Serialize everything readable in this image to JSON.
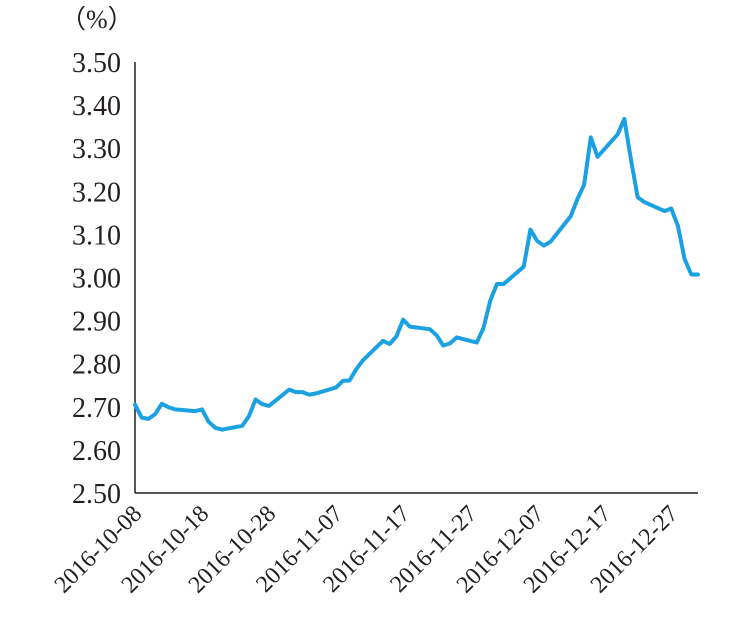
{
  "chart_data": {
    "type": "line",
    "title": "",
    "xlabel": "",
    "ylabel": "（%）",
    "ylim": [
      2.5,
      3.5
    ],
    "y_ticks": [
      "2.50",
      "2.60",
      "2.70",
      "2.80",
      "2.90",
      "3.00",
      "3.10",
      "3.20",
      "3.30",
      "3.40",
      "3.50"
    ],
    "x_ticks": [
      "2016-10-08",
      "2016-10-18",
      "2016-10-28",
      "2016-11-07",
      "2016-11-17",
      "2016-11-27",
      "2016-12-07",
      "2016-12-17",
      "2016-12-27"
    ],
    "x_range": [
      "2016-10-08",
      "2016-12-31"
    ],
    "grid": false,
    "line_color": "#1ba1e2",
    "series": [
      {
        "name": "",
        "points": [
          [
            "2016-10-08",
            2.705
          ],
          [
            "2016-10-09",
            2.675
          ],
          [
            "2016-10-10",
            2.672
          ],
          [
            "2016-10-11",
            2.683
          ],
          [
            "2016-10-12",
            2.707
          ],
          [
            "2016-10-13",
            2.699
          ],
          [
            "2016-10-14",
            2.694
          ],
          [
            "2016-10-17",
            2.69
          ],
          [
            "2016-10-18",
            2.694
          ],
          [
            "2016-10-19",
            2.665
          ],
          [
            "2016-10-20",
            2.651
          ],
          [
            "2016-10-21",
            2.647
          ],
          [
            "2016-10-24",
            2.656
          ],
          [
            "2016-10-25",
            2.678
          ],
          [
            "2016-10-26",
            2.717
          ],
          [
            "2016-10-27",
            2.706
          ],
          [
            "2016-10-28",
            2.702
          ],
          [
            "2016-10-31",
            2.74
          ],
          [
            "2016-11-01",
            2.734
          ],
          [
            "2016-11-02",
            2.734
          ],
          [
            "2016-11-03",
            2.728
          ],
          [
            "2016-11-04",
            2.731
          ],
          [
            "2016-11-07",
            2.745
          ],
          [
            "2016-11-08",
            2.76
          ],
          [
            "2016-11-09",
            2.761
          ],
          [
            "2016-11-10",
            2.787
          ],
          [
            "2016-11-11",
            2.808
          ],
          [
            "2016-11-14",
            2.853
          ],
          [
            "2016-11-15",
            2.846
          ],
          [
            "2016-11-16",
            2.863
          ],
          [
            "2016-11-17",
            2.902
          ],
          [
            "2016-11-18",
            2.886
          ],
          [
            "2016-11-21",
            2.88
          ],
          [
            "2016-11-22",
            2.866
          ],
          [
            "2016-11-23",
            2.842
          ],
          [
            "2016-11-24",
            2.847
          ],
          [
            "2016-11-25",
            2.861
          ],
          [
            "2016-11-28",
            2.849
          ],
          [
            "2016-11-29",
            2.883
          ],
          [
            "2016-11-30",
            2.946
          ],
          [
            "2016-12-01",
            2.985
          ],
          [
            "2016-12-02",
            2.985
          ],
          [
            "2016-12-05",
            3.025
          ],
          [
            "2016-12-06",
            3.111
          ],
          [
            "2016-12-07",
            3.085
          ],
          [
            "2016-12-08",
            3.074
          ],
          [
            "2016-12-09",
            3.083
          ],
          [
            "2016-12-12",
            3.142
          ],
          [
            "2016-12-13",
            3.182
          ],
          [
            "2016-12-14",
            3.215
          ],
          [
            "2016-12-15",
            3.325
          ],
          [
            "2016-12-16",
            3.28
          ],
          [
            "2016-12-19",
            3.332
          ],
          [
            "2016-12-20",
            3.368
          ],
          [
            "2016-12-21",
            3.273
          ],
          [
            "2016-12-22",
            3.186
          ],
          [
            "2016-12-23",
            3.175
          ],
          [
            "2016-12-26",
            3.154
          ],
          [
            "2016-12-27",
            3.16
          ],
          [
            "2016-12-28",
            3.12
          ],
          [
            "2016-12-29",
            3.043
          ],
          [
            "2016-12-30",
            3.007
          ],
          [
            "2016-12-31",
            3.007
          ]
        ]
      }
    ]
  }
}
